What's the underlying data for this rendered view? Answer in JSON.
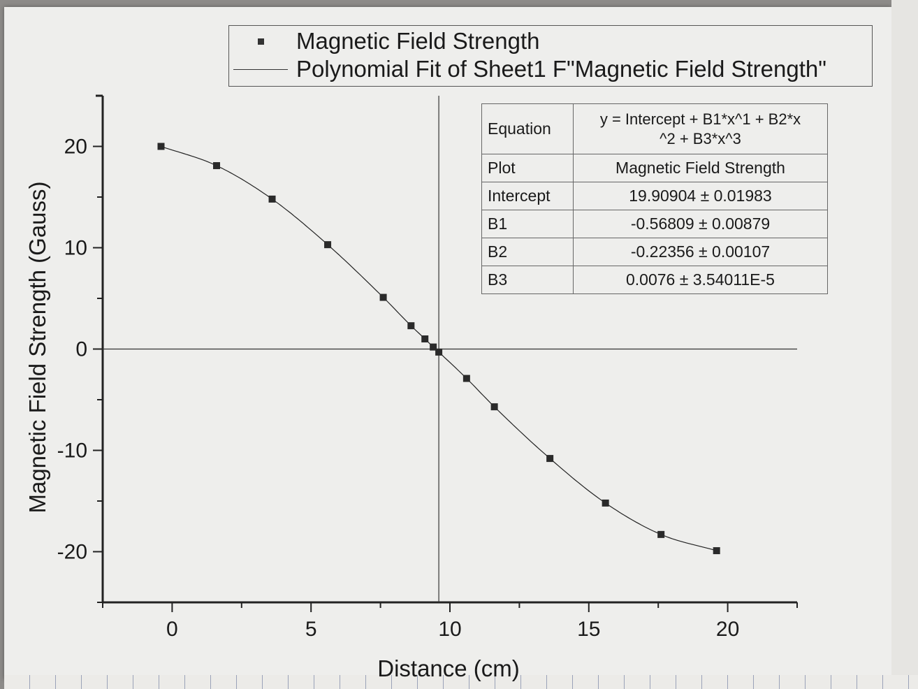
{
  "legend": {
    "data_label": "Magnetic Field Strength",
    "fit_label": "Polynomial Fit of Sheet1 F\"Magnetic Field Strength\""
  },
  "fit_table": {
    "equation_label": "Equation",
    "equation_value_1": "y = Intercept + B1*x^1 + B2*x",
    "equation_value_2": "^2 + B3*x^3",
    "rows": [
      {
        "label": "Plot",
        "value": "Magnetic Field Strength"
      },
      {
        "label": "Intercept",
        "value": "19.90904 ± 0.01983"
      },
      {
        "label": "B1",
        "value": "-0.56809 ± 0.00879"
      },
      {
        "label": "B2",
        "value": "-0.22356 ± 0.00107"
      },
      {
        "label": "B3",
        "value": "0.0076 ± 3.54011E-5"
      }
    ]
  },
  "chart_data": {
    "type": "scatter",
    "title": "",
    "xlabel": "Distance (cm)",
    "ylabel": "Magnetic Field Strength (Gauss)",
    "xlim": [
      -2.5,
      22.5
    ],
    "ylim": [
      -25,
      25
    ],
    "x_ticks": [
      0,
      5,
      10,
      15,
      20
    ],
    "y_ticks": [
      20,
      10,
      0,
      -10,
      -20
    ],
    "grid": false,
    "legend_position": "top",
    "series": [
      {
        "name": "Magnetic Field Strength",
        "marker": "square",
        "x": [
          -0.4,
          1.6,
          3.6,
          5.6,
          7.6,
          8.6,
          9.1,
          9.4,
          9.6,
          10.6,
          11.6,
          13.6,
          15.6,
          17.6,
          19.6
        ],
        "y": [
          20.0,
          18.1,
          14.8,
          10.3,
          5.1,
          2.3,
          1.0,
          0.2,
          -0.3,
          -2.9,
          -5.7,
          -10.8,
          -15.2,
          -18.3,
          -19.9
        ]
      },
      {
        "name": "Polynomial Fit of Sheet1 F\"Magnetic Field Strength\"",
        "type": "line",
        "fit": {
          "intercept": 19.90904,
          "b1": -0.56809,
          "b2": -0.22356,
          "b3": 0.0076
        },
        "x_range": [
          -0.4,
          19.6
        ]
      }
    ],
    "reference_lines": {
      "x": 9.6,
      "y": 0
    }
  }
}
